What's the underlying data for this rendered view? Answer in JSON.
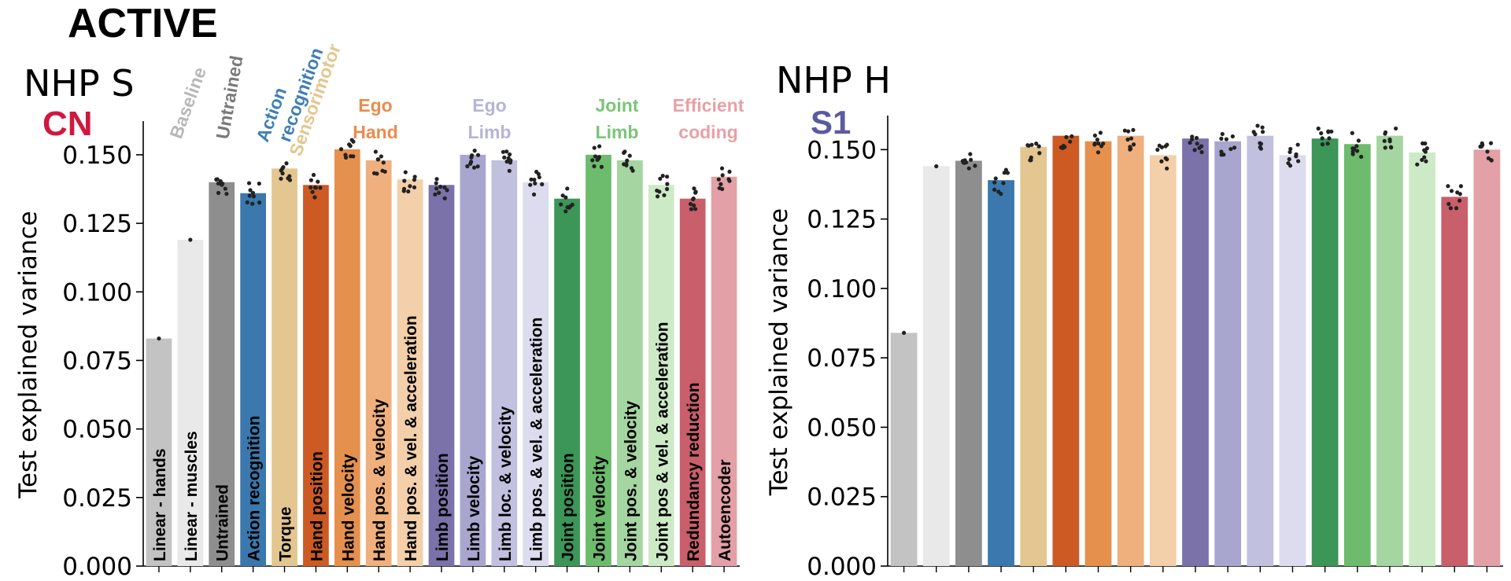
{
  "figure": {
    "title": "ACTIVE",
    "left_panel": {
      "name": "NHP S",
      "area": "CN",
      "area_color": "#d0183f"
    },
    "right_panel": {
      "name": "NHP H",
      "area": "S1",
      "area_color": "#5b5aa0"
    }
  },
  "colors": {
    "baseline": "#a0a0a0",
    "untrained": "#7a7a7a",
    "action_recognition": "#3f7fb5",
    "sensorimotor": "#e3c68f",
    "ego_hand": "#e8894a",
    "ego_limb": "#b6b4d8",
    "joint_limb": "#7cc47a",
    "efficient_coding": "#e8a0a6"
  },
  "group_labels": [
    {
      "key": "baseline",
      "lines": [
        "Baseline"
      ],
      "color": "#b8b8b8"
    },
    {
      "key": "untrained",
      "lines": [
        "Untrained"
      ],
      "color": "#7a7a7a"
    },
    {
      "key": "action_recognition",
      "lines": [
        "Action",
        "recognition"
      ],
      "color": "#3f7fb5"
    },
    {
      "key": "sensorimotor",
      "lines": [
        "Sensorimotor"
      ],
      "color": "#e3c68f"
    },
    {
      "key": "ego_hand",
      "lines": [
        "Ego",
        "Hand"
      ],
      "color": "#ea8c4f"
    },
    {
      "key": "ego_limb",
      "lines": [
        "Ego",
        "Limb"
      ],
      "color": "#b6b4d8"
    },
    {
      "key": "joint_limb",
      "lines": [
        "Joint",
        "Limb"
      ],
      "color": "#7cc47a"
    },
    {
      "key": "efficient_coding",
      "lines": [
        "Efficient",
        "coding"
      ],
      "color": "#e8a0a6"
    }
  ],
  "chart_data": [
    {
      "type": "bar",
      "panel": "NHP S CN",
      "ylabel": "Test explained variance",
      "ylim": [
        0,
        0.16
      ],
      "yticks": [
        "0.000",
        "0.025",
        "0.050",
        "0.075",
        "0.100",
        "0.125",
        "0.150"
      ],
      "categories": [
        "Linear - hands",
        "Linear - muscles",
        "Untrained",
        "Action recognition",
        "Torque",
        "Hand position",
        "Hand velocity",
        "Hand pos. & velocity",
        "Hand pos. & vel. &  acceleration",
        "Limb position",
        "Limb velocity",
        "Limb loc. & velocity",
        "Limb pos. & vel. &  acceleration",
        "Joint position",
        "Joint velocity",
        "Joint pos. & velocity",
        "Joint pos & vel. & acceleration",
        "Redundancy reduction",
        "Autoencoder"
      ],
      "values": [
        0.083,
        0.119,
        0.14,
        0.136,
        0.145,
        0.139,
        0.152,
        0.148,
        0.141,
        0.139,
        0.15,
        0.148,
        0.14,
        0.134,
        0.15,
        0.148,
        0.139,
        0.134,
        0.142
      ],
      "colors": [
        "#c3c3c3",
        "#e9e9e9",
        "#8e8e8e",
        "#3a78ad",
        "#e3c690",
        "#cc5a22",
        "#e6904d",
        "#f0b07e",
        "#f3d0aa",
        "#7a72a8",
        "#a8a6ce",
        "#c2c0df",
        "#dcdcee",
        "#3b9657",
        "#6dbb6c",
        "#a5d5a0",
        "#cdeac6",
        "#c95f6a",
        "#e3a0a6"
      ]
    },
    {
      "type": "bar",
      "panel": "NHP H S1",
      "ylabel": "Test explained variance",
      "ylim": [
        0,
        0.16
      ],
      "yticks": [
        "0.000",
        "0.025",
        "0.050",
        "0.075",
        "0.100",
        "0.125",
        "0.150"
      ],
      "values": [
        0.084,
        0.144,
        0.146,
        0.139,
        0.151,
        0.155,
        0.153,
        0.155,
        0.148,
        0.154,
        0.153,
        0.155,
        0.148,
        0.154,
        0.152,
        0.155,
        0.149,
        0.133,
        0.15
      ],
      "colors": [
        "#c3c3c3",
        "#e9e9e9",
        "#8e8e8e",
        "#3a78ad",
        "#e3c690",
        "#cc5a22",
        "#e6904d",
        "#f0b07e",
        "#f3d0aa",
        "#7a72a8",
        "#a8a6ce",
        "#c2c0df",
        "#dcdcee",
        "#3b9657",
        "#6dbb6c",
        "#a5d5a0",
        "#cdeac6",
        "#c95f6a",
        "#e3a0a6"
      ]
    }
  ]
}
